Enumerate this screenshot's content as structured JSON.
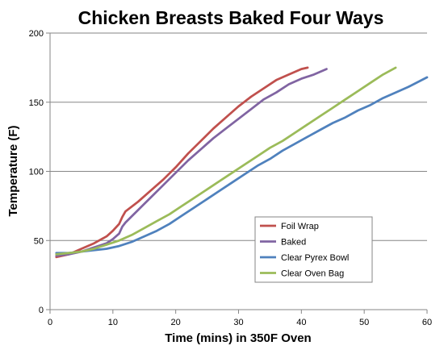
{
  "chart_data": {
    "type": "line",
    "title": "Chicken Breasts Baked Four Ways",
    "xlabel": "Time (mins) in 350F Oven",
    "ylabel": "Temperature (F)",
    "xlim": [
      0,
      60
    ],
    "ylim": [
      0,
      200
    ],
    "xticks": [
      0,
      10,
      20,
      30,
      40,
      50,
      60
    ],
    "yticks": [
      0,
      50,
      100,
      150,
      200
    ],
    "grid": "horizontal",
    "legend_position": "lower-right inside plot",
    "series": [
      {
        "name": "Foil Wrap",
        "color": "#C0504D",
        "x": [
          1,
          3,
          5,
          7,
          9,
          10,
          11,
          11.5,
          12,
          14,
          16,
          18,
          20,
          22,
          24,
          26,
          28,
          30,
          32,
          34,
          36,
          38,
          40,
          41
        ],
        "y": [
          38,
          40,
          44,
          48,
          53,
          57,
          62,
          67,
          71,
          78,
          86,
          94,
          103,
          113,
          122,
          131,
          139,
          147,
          154,
          160,
          166,
          170,
          174,
          175
        ]
      },
      {
        "name": "Baked",
        "color": "#8064A2",
        "x": [
          1,
          3,
          5,
          7,
          9,
          10,
          11,
          11.5,
          12,
          14,
          16,
          18,
          20,
          22,
          24,
          26,
          28,
          30,
          32,
          34,
          36,
          38,
          40,
          42,
          44
        ],
        "y": [
          39,
          40,
          42,
          45,
          48,
          51,
          55,
          60,
          63,
          72,
          81,
          90,
          99,
          108,
          116,
          124,
          131,
          138,
          145,
          152,
          157,
          163,
          167,
          170,
          174
        ]
      },
      {
        "name": "Clear Pyrex Bowl",
        "color": "#4F81BD",
        "x": [
          1,
          3,
          5,
          7,
          9,
          11,
          13,
          15,
          17,
          19,
          21,
          23,
          25,
          27,
          29,
          31,
          33,
          35,
          37,
          39,
          41,
          43,
          45,
          47,
          49,
          51,
          53,
          55,
          57,
          60
        ],
        "y": [
          41,
          41,
          42,
          43,
          44,
          46,
          49,
          53,
          57,
          62,
          68,
          74,
          80,
          86,
          92,
          98,
          104,
          109,
          115,
          120,
          125,
          130,
          135,
          139,
          144,
          148,
          153,
          157,
          161,
          168
        ]
      },
      {
        "name": "Clear Oven Bag",
        "color": "#9BBB59",
        "x": [
          1,
          3,
          5,
          7,
          9,
          11,
          13,
          15,
          17,
          19,
          21,
          23,
          25,
          27,
          29,
          31,
          33,
          35,
          37,
          39,
          41,
          43,
          45,
          47,
          49,
          51,
          53,
          55
        ],
        "y": [
          40,
          41,
          42,
          44,
          47,
          50,
          54,
          59,
          64,
          69,
          75,
          81,
          87,
          93,
          99,
          105,
          111,
          117,
          122,
          128,
          134,
          140,
          146,
          152,
          158,
          164,
          170,
          175
        ]
      }
    ]
  }
}
